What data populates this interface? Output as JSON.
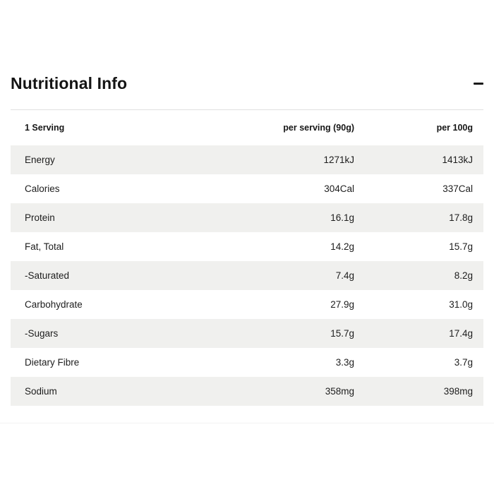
{
  "section": {
    "title": "Nutritional Info",
    "collapse_icon": "minus-icon",
    "table": {
      "columns": [
        "1 Serving",
        "per serving (90g)",
        "per 100g"
      ],
      "rows": [
        {
          "label": "Energy",
          "per_serving": "1271kJ",
          "per_100g": "1413kJ"
        },
        {
          "label": "Calories",
          "per_serving": "304Cal",
          "per_100g": "337Cal"
        },
        {
          "label": "Protein",
          "per_serving": "16.1g",
          "per_100g": "17.8g"
        },
        {
          "label": "Fat, Total",
          "per_serving": "14.2g",
          "per_100g": "15.7g"
        },
        {
          "label": "-Saturated",
          "per_serving": "7.4g",
          "per_100g": "8.2g"
        },
        {
          "label": "Carbohydrate",
          "per_serving": "27.9g",
          "per_100g": "31.0g"
        },
        {
          "label": "-Sugars",
          "per_serving": "15.7g",
          "per_100g": "17.4g"
        },
        {
          "label": "Dietary Fibre",
          "per_serving": "3.3g",
          "per_100g": "3.7g"
        },
        {
          "label": "Sodium",
          "per_serving": "358mg",
          "per_100g": "398mg"
        }
      ]
    }
  },
  "colors": {
    "stripe": "#f0f0ee",
    "divider": "#e1e1e1",
    "text": "#1d1d1d",
    "title": "#141414"
  }
}
